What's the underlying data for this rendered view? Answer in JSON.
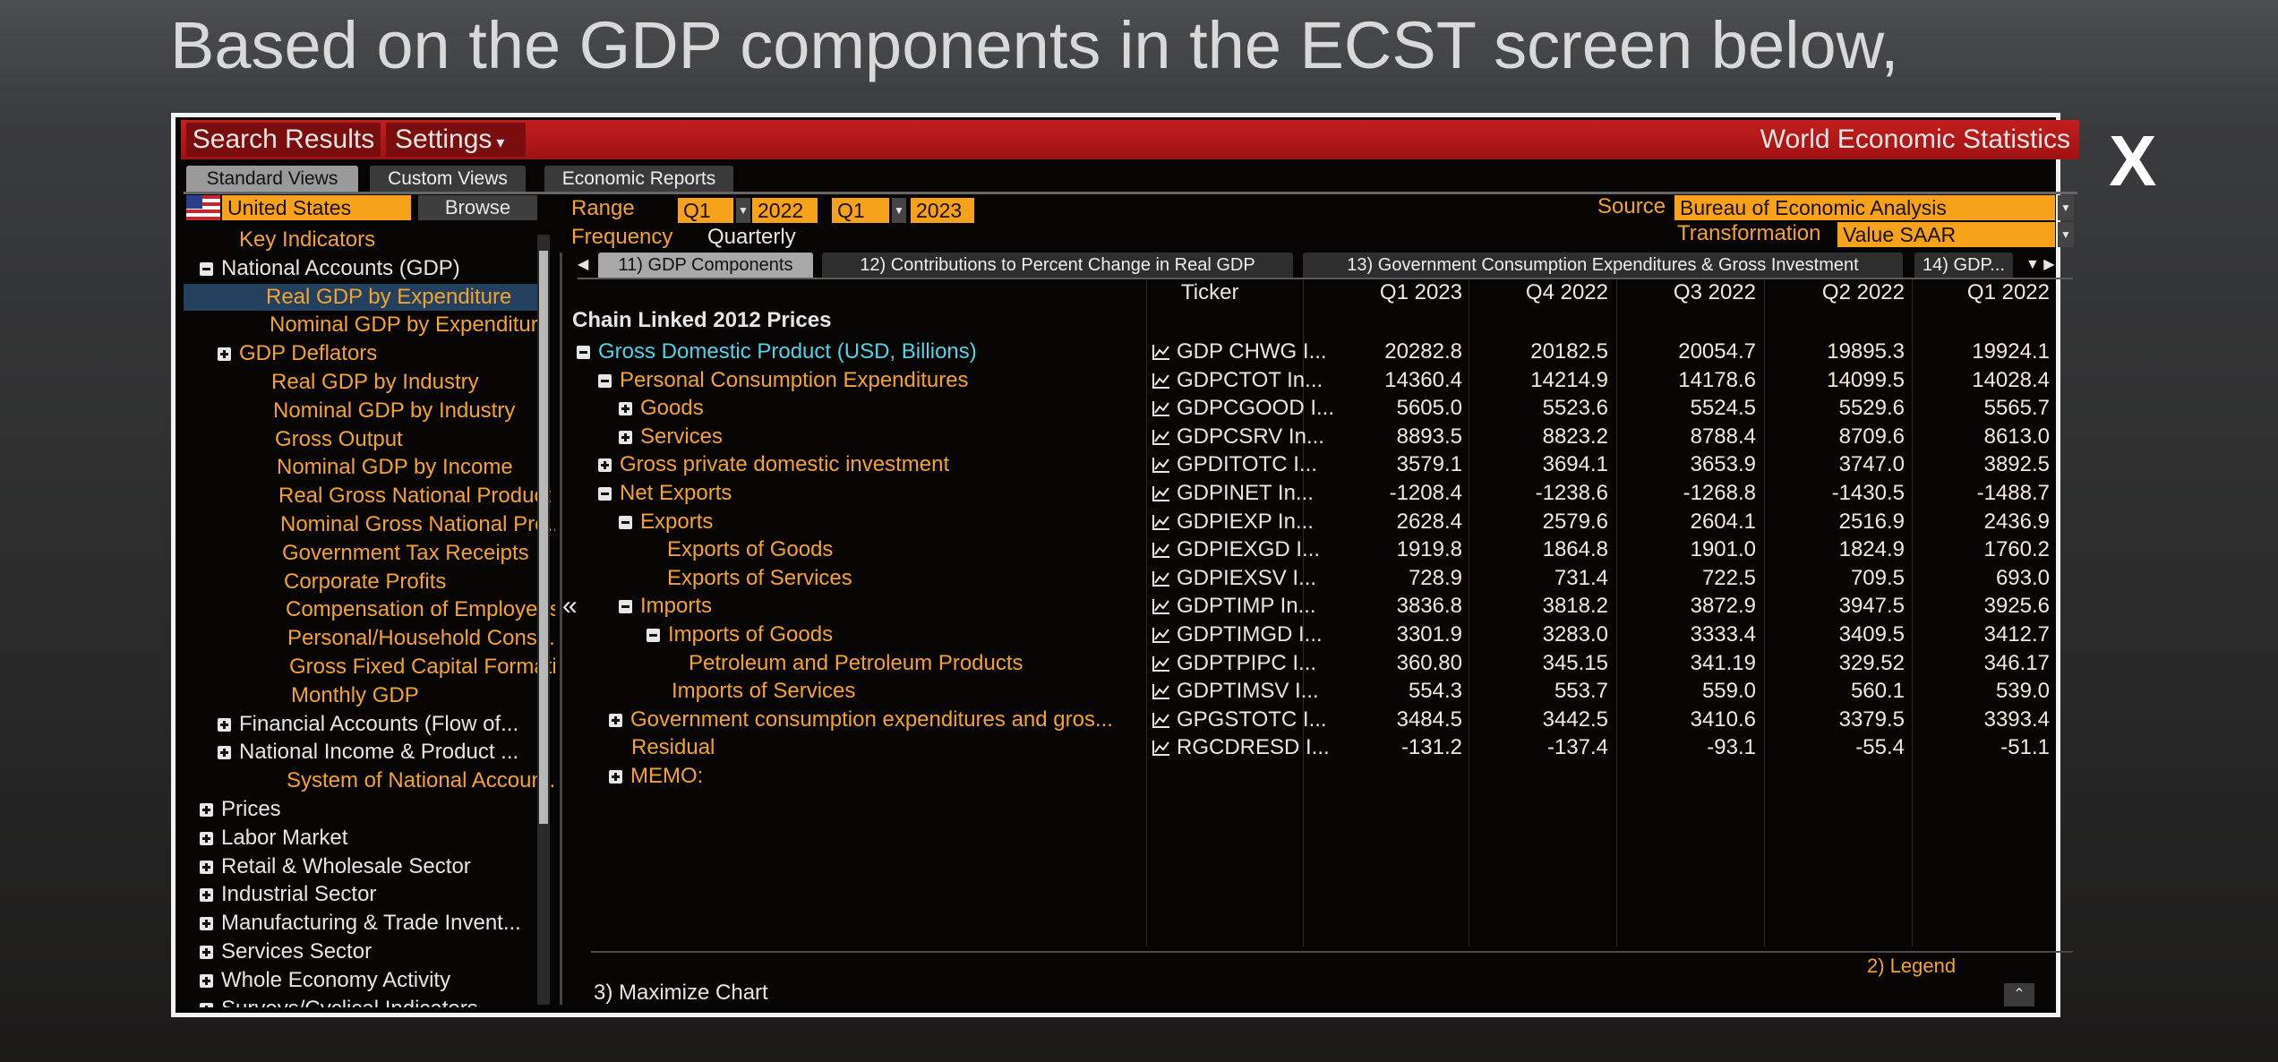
{
  "header_text": "Based on the GDP components in the ECST screen below,",
  "window": {
    "search_results": "Search Results",
    "settings": "Settings",
    "title": "World Economic Statistics",
    "close": "X"
  },
  "tabs": [
    "Standard Views",
    "Custom Views",
    "Economic Reports"
  ],
  "country": "United States",
  "browse": "Browse",
  "range": {
    "label": "Range",
    "values": [
      "Q1",
      "2022",
      "Q1",
      "2023"
    ]
  },
  "frequency": {
    "label": "Frequency",
    "value": "Quarterly"
  },
  "source": {
    "label": "Source",
    "value": "Bureau of Economic Analysis"
  },
  "transformation": {
    "label": "Transformation",
    "value": "Value SAAR"
  },
  "sidebar": [
    "Key Indicators",
    "National Accounts (GDP)",
    "Real GDP by Expenditure",
    "Nominal GDP by Expenditure",
    "GDP Deflators",
    "Real GDP by Industry",
    "Nominal GDP by Industry",
    "Gross Output",
    "Nominal GDP by Income",
    "Real Gross National Product",
    "Nominal Gross National Pro...",
    "Government Tax Receipts",
    "Corporate Profits",
    "Compensation of Employees",
    "Personal/Household Consu...",
    "Gross Fixed Capital Formati...",
    "Monthly GDP",
    "Financial Accounts (Flow of...",
    "National Income & Product ...",
    "System of National Account...",
    "Prices",
    "Labor Market",
    "Retail & Wholesale Sector",
    "Industrial Sector",
    "Manufacturing & Trade Invent...",
    "Services Sector",
    "Whole Economy Activity",
    "Surveys/Cyclical Indicators"
  ],
  "subtabs": [
    "11) GDP Components",
    "12) Contributions to Percent Change in Real GDP",
    "13) Government Consumption Expenditures & Gross Investment",
    "14) GDP..."
  ],
  "table": {
    "section": "Chain Linked 2012 Prices",
    "columns": [
      "Ticker",
      "Q1 2023",
      "Q4 2022",
      "Q3 2022",
      "Q2 2022",
      "Q1 2022"
    ],
    "rows": [
      {
        "name": "Gross Domestic Product (USD, Billions)",
        "ticker": "GDP CHWG I...",
        "values": [
          "20282.8",
          "20182.5",
          "20054.7",
          "19895.3",
          "19924.1"
        ]
      },
      {
        "name": "Personal Consumption Expenditures",
        "ticker": "GDPCTOT In...",
        "values": [
          "14360.4",
          "14214.9",
          "14178.6",
          "14099.5",
          "14028.4"
        ]
      },
      {
        "name": "Goods",
        "ticker": "GDPCGOOD I...",
        "values": [
          "5605.0",
          "5523.6",
          "5524.5",
          "5529.6",
          "5565.7"
        ]
      },
      {
        "name": "Services",
        "ticker": "GDPCSRV In...",
        "values": [
          "8893.5",
          "8823.2",
          "8788.4",
          "8709.6",
          "8613.0"
        ]
      },
      {
        "name": "Gross private domestic investment",
        "ticker": "GPDITOTC I...",
        "values": [
          "3579.1",
          "3694.1",
          "3653.9",
          "3747.0",
          "3892.5"
        ]
      },
      {
        "name": "Net Exports",
        "ticker": "GDPINET In...",
        "values": [
          "-1208.4",
          "-1238.6",
          "-1268.8",
          "-1430.5",
          "-1488.7"
        ]
      },
      {
        "name": "Exports",
        "ticker": "GDPIEXP In...",
        "values": [
          "2628.4",
          "2579.6",
          "2604.1",
          "2516.9",
          "2436.9"
        ]
      },
      {
        "name": "Exports of Goods",
        "ticker": "GDPIEXGD I...",
        "values": [
          "1919.8",
          "1864.8",
          "1901.0",
          "1824.9",
          "1760.2"
        ]
      },
      {
        "name": "Exports of Services",
        "ticker": "GDPIEXSV I...",
        "values": [
          "728.9",
          "731.4",
          "722.5",
          "709.5",
          "693.0"
        ]
      },
      {
        "name": "Imports",
        "ticker": "GDPTIMP In...",
        "values": [
          "3836.8",
          "3818.2",
          "3872.9",
          "3947.5",
          "3925.6"
        ]
      },
      {
        "name": "Imports of Goods",
        "ticker": "GDPTIMGD I...",
        "values": [
          "3301.9",
          "3283.0",
          "3333.4",
          "3409.5",
          "3412.7"
        ]
      },
      {
        "name": "Petroleum and Petroleum Products",
        "ticker": "GDPTPIPC I...",
        "values": [
          "360.80",
          "345.15",
          "341.19",
          "329.52",
          "346.17"
        ]
      },
      {
        "name": "Imports of Services",
        "ticker": "GDPTIMSV I...",
        "values": [
          "554.3",
          "553.7",
          "559.0",
          "560.1",
          "539.0"
        ]
      },
      {
        "name": "Government consumption expenditures and gros...",
        "ticker": "GPGSTOTC I...",
        "values": [
          "3484.5",
          "3442.5",
          "3410.6",
          "3379.5",
          "3393.4"
        ]
      },
      {
        "name": "Residual",
        "ticker": "RGCDRESD I...",
        "values": [
          "-131.2",
          "-137.4",
          "-93.1",
          "-55.4",
          "-51.1"
        ]
      },
      {
        "name": "MEMO:"
      }
    ]
  },
  "legend": "2) Legend",
  "maximize": "3) Maximize Chart"
}
